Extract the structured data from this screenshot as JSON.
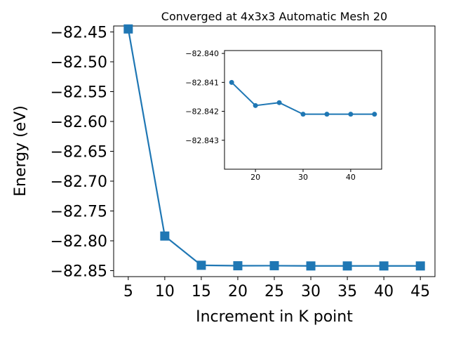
{
  "colors": {
    "series": "#1f77b4",
    "axis": "#000000",
    "background": "#ffffff"
  },
  "chart_data": [
    {
      "type": "line",
      "title": "Converged at 4x3x3 Automatic Mesh 20",
      "xlabel": "Increment in K point",
      "ylabel": "Energy (eV)",
      "marker": "square",
      "xlim": [
        3.0,
        47.0
      ],
      "ylim": [
        -82.86,
        -82.44
      ],
      "xticks": [
        5,
        10,
        15,
        20,
        25,
        30,
        35,
        40,
        45
      ],
      "xtick_labels": [
        "5",
        "10",
        "15",
        "20",
        "25",
        "30",
        "35",
        "40",
        "45"
      ],
      "yticks": [
        -82.45,
        -82.5,
        -82.55,
        -82.6,
        -82.65,
        -82.7,
        -82.75,
        -82.8,
        -82.85
      ],
      "ytick_labels": [
        "−82.45",
        "−82.50",
        "−82.55",
        "−82.60",
        "−82.65",
        "−82.70",
        "−82.75",
        "−82.80",
        "−82.85"
      ],
      "x": [
        5,
        10,
        15,
        20,
        25,
        30,
        35,
        40,
        45
      ],
      "y": [
        -82.445,
        -82.792,
        -82.841,
        -82.8418,
        -82.8417,
        -82.8421,
        -82.8421,
        -82.8421,
        -82.8421
      ]
    },
    {
      "type": "line",
      "inset": true,
      "marker": "circle",
      "xlim": [
        13.5,
        46.5
      ],
      "ylim": [
        -82.844,
        -82.8399
      ],
      "xticks": [
        20,
        30,
        40
      ],
      "xtick_labels": [
        "20",
        "30",
        "40"
      ],
      "yticks": [
        -82.843,
        -82.842,
        -82.841,
        -82.84
      ],
      "ytick_labels": [
        "−82.843",
        "−82.842",
        "−82.841",
        "−82.840"
      ],
      "x": [
        15,
        20,
        25,
        30,
        35,
        40,
        45
      ],
      "y": [
        -82.841,
        -82.8418,
        -82.8417,
        -82.8421,
        -82.8421,
        -82.8421,
        -82.8421
      ]
    }
  ]
}
